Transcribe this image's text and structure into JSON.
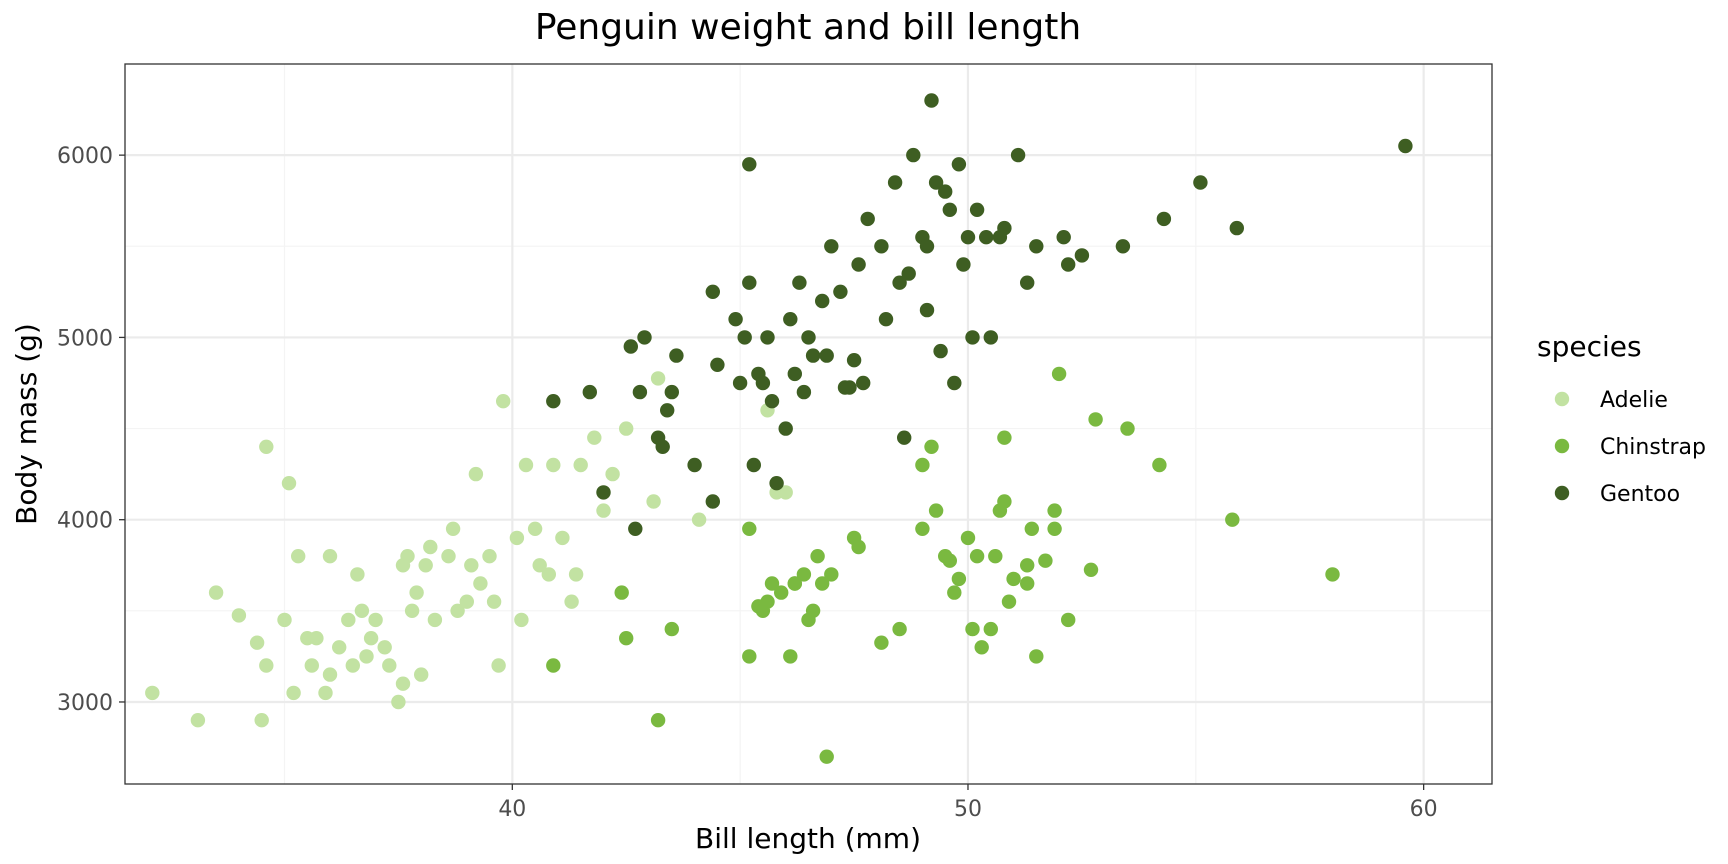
{
  "chart_data": {
    "type": "scatter",
    "title": "Penguin weight and bill length",
    "xlabel": "Bill length (mm)",
    "ylabel": "Body mass (g)",
    "xlim": [
      31.5,
      61.5
    ],
    "ylim": [
      2550,
      6500
    ],
    "x_ticks": [
      40,
      50,
      60
    ],
    "y_ticks": [
      3000,
      4000,
      5000,
      6000
    ],
    "grid": true,
    "legend": {
      "title": "species",
      "placement": "right"
    },
    "series": [
      {
        "name": "Adelie",
        "color": "#c2e2a2",
        "points": [
          [
            32.1,
            3050
          ],
          [
            33.1,
            2900
          ],
          [
            33.5,
            3600
          ],
          [
            34.0,
            3475
          ],
          [
            34.4,
            3325
          ],
          [
            34.5,
            2900
          ],
          [
            34.6,
            3200
          ],
          [
            34.6,
            4400
          ],
          [
            35.0,
            3450
          ],
          [
            35.1,
            4200
          ],
          [
            35.2,
            3050
          ],
          [
            35.3,
            3800
          ],
          [
            35.5,
            3350
          ],
          [
            35.6,
            3200
          ],
          [
            35.7,
            3350
          ],
          [
            35.9,
            3050
          ],
          [
            36.0,
            3800
          ],
          [
            36.0,
            3150
          ],
          [
            36.2,
            3300
          ],
          [
            36.4,
            3450
          ],
          [
            36.5,
            3200
          ],
          [
            36.6,
            3700
          ],
          [
            36.7,
            3500
          ],
          [
            36.8,
            3250
          ],
          [
            36.9,
            3350
          ],
          [
            37.0,
            3450
          ],
          [
            37.2,
            3300
          ],
          [
            37.3,
            3200
          ],
          [
            37.5,
            3000
          ],
          [
            37.6,
            3100
          ],
          [
            37.7,
            3800
          ],
          [
            37.8,
            3500
          ],
          [
            37.9,
            3600
          ],
          [
            38.0,
            3150
          ],
          [
            38.1,
            3750
          ],
          [
            38.2,
            3850
          ],
          [
            38.3,
            3450
          ],
          [
            38.6,
            3800
          ],
          [
            38.7,
            3950
          ],
          [
            38.8,
            3500
          ],
          [
            39.0,
            3550
          ],
          [
            39.1,
            3750
          ],
          [
            39.2,
            4250
          ],
          [
            39.3,
            3650
          ],
          [
            39.5,
            3800
          ],
          [
            39.6,
            3550
          ],
          [
            39.7,
            3200
          ],
          [
            39.8,
            4650
          ],
          [
            40.2,
            3450
          ],
          [
            40.3,
            4300
          ],
          [
            40.5,
            3950
          ],
          [
            40.6,
            3750
          ],
          [
            40.8,
            3700
          ],
          [
            41.1,
            3900
          ],
          [
            41.3,
            3550
          ],
          [
            41.5,
            4300
          ],
          [
            41.8,
            4450
          ],
          [
            42.0,
            4050
          ],
          [
            42.2,
            4250
          ],
          [
            42.5,
            4500
          ],
          [
            43.1,
            4100
          ],
          [
            43.2,
            4775
          ],
          [
            44.1,
            4000
          ],
          [
            45.6,
            4600
          ],
          [
            45.8,
            4150
          ],
          [
            46.0,
            4150
          ],
          [
            40.1,
            3900
          ],
          [
            40.9,
            4300
          ],
          [
            41.4,
            3700
          ],
          [
            37.6,
            3750
          ]
        ]
      },
      {
        "name": "Chinstrap",
        "color": "#7ab940",
        "points": [
          [
            40.9,
            3200
          ],
          [
            42.4,
            3600
          ],
          [
            42.5,
            3350
          ],
          [
            43.2,
            2900
          ],
          [
            43.5,
            3400
          ],
          [
            45.2,
            3250
          ],
          [
            45.2,
            3950
          ],
          [
            45.4,
            3525
          ],
          [
            45.5,
            3500
          ],
          [
            45.6,
            3550
          ],
          [
            45.7,
            3650
          ],
          [
            45.9,
            3600
          ],
          [
            46.1,
            3250
          ],
          [
            46.2,
            3650
          ],
          [
            46.4,
            3700
          ],
          [
            46.5,
            3450
          ],
          [
            46.6,
            3500
          ],
          [
            46.7,
            3800
          ],
          [
            46.8,
            3650
          ],
          [
            46.9,
            2700
          ],
          [
            47.0,
            3700
          ],
          [
            47.5,
            3900
          ],
          [
            47.6,
            3850
          ],
          [
            48.1,
            3325
          ],
          [
            48.5,
            3400
          ],
          [
            49.0,
            3950
          ],
          [
            49.2,
            4400
          ],
          [
            49.3,
            4050
          ],
          [
            49.5,
            3800
          ],
          [
            49.6,
            3775
          ],
          [
            49.7,
            3600
          ],
          [
            49.8,
            3675
          ],
          [
            50.0,
            3900
          ],
          [
            50.1,
            3400
          ],
          [
            50.2,
            3800
          ],
          [
            50.3,
            3300
          ],
          [
            50.5,
            3400
          ],
          [
            50.6,
            3800
          ],
          [
            50.7,
            4050
          ],
          [
            50.8,
            4100
          ],
          [
            50.9,
            3550
          ],
          [
            51.0,
            3675
          ],
          [
            51.3,
            3650
          ],
          [
            51.4,
            3950
          ],
          [
            51.5,
            3250
          ],
          [
            51.7,
            3775
          ],
          [
            51.9,
            4050
          ],
          [
            52.0,
            4800
          ],
          [
            52.2,
            3450
          ],
          [
            52.7,
            3725
          ],
          [
            52.8,
            4550
          ],
          [
            53.5,
            4500
          ],
          [
            54.2,
            4300
          ],
          [
            55.8,
            4000
          ],
          [
            58.0,
            3700
          ],
          [
            50.8,
            4450
          ],
          [
            49.0,
            4300
          ],
          [
            51.3,
            3750
          ],
          [
            46.2,
            3650
          ],
          [
            51.9,
            3950
          ]
        ]
      },
      {
        "name": "Gentoo",
        "color": "#3e5e22",
        "points": [
          [
            40.9,
            4650
          ],
          [
            41.7,
            4700
          ],
          [
            42.0,
            4150
          ],
          [
            42.6,
            4950
          ],
          [
            42.7,
            3950
          ],
          [
            42.8,
            4700
          ],
          [
            42.9,
            5000
          ],
          [
            43.2,
            4450
          ],
          [
            43.3,
            4400
          ],
          [
            43.4,
            4600
          ],
          [
            43.5,
            4700
          ],
          [
            43.6,
            4900
          ],
          [
            44.0,
            4300
          ],
          [
            44.4,
            5250
          ],
          [
            44.5,
            4850
          ],
          [
            44.9,
            5100
          ],
          [
            45.0,
            4750
          ],
          [
            45.1,
            5000
          ],
          [
            45.2,
            5300
          ],
          [
            45.3,
            4300
          ],
          [
            45.4,
            4800
          ],
          [
            45.5,
            4750
          ],
          [
            45.6,
            5000
          ],
          [
            45.7,
            4650
          ],
          [
            45.8,
            4200
          ],
          [
            46.1,
            5100
          ],
          [
            46.2,
            4800
          ],
          [
            46.3,
            5300
          ],
          [
            46.4,
            4700
          ],
          [
            46.5,
            5000
          ],
          [
            46.6,
            4900
          ],
          [
            46.8,
            5200
          ],
          [
            47.0,
            5500
          ],
          [
            47.2,
            5250
          ],
          [
            47.3,
            4725
          ],
          [
            47.4,
            4725
          ],
          [
            47.5,
            4875
          ],
          [
            47.6,
            5400
          ],
          [
            47.8,
            5650
          ],
          [
            48.1,
            5500
          ],
          [
            48.2,
            5100
          ],
          [
            48.4,
            5850
          ],
          [
            48.5,
            5300
          ],
          [
            48.7,
            5350
          ],
          [
            48.8,
            6000
          ],
          [
            49.0,
            5550
          ],
          [
            49.1,
            5500
          ],
          [
            49.2,
            6300
          ],
          [
            49.3,
            5850
          ],
          [
            49.4,
            4925
          ],
          [
            49.5,
            5800
          ],
          [
            49.6,
            5700
          ],
          [
            49.8,
            5950
          ],
          [
            49.9,
            5400
          ],
          [
            50.0,
            5550
          ],
          [
            50.1,
            5000
          ],
          [
            50.2,
            5700
          ],
          [
            50.4,
            5550
          ],
          [
            50.5,
            5000
          ],
          [
            50.7,
            5550
          ],
          [
            50.8,
            5600
          ],
          [
            51.1,
            6000
          ],
          [
            51.3,
            5300
          ],
          [
            51.5,
            5500
          ],
          [
            52.1,
            5550
          ],
          [
            52.2,
            5400
          ],
          [
            52.5,
            5450
          ],
          [
            53.4,
            5500
          ],
          [
            54.3,
            5650
          ],
          [
            55.1,
            5850
          ],
          [
            55.9,
            5600
          ],
          [
            59.6,
            6050
          ],
          [
            45.2,
            5950
          ],
          [
            44.4,
            4100
          ],
          [
            46.0,
            4500
          ],
          [
            46.9,
            4900
          ],
          [
            47.7,
            4750
          ],
          [
            48.6,
            4450
          ],
          [
            49.1,
            5150
          ],
          [
            49.7,
            4750
          ]
        ]
      }
    ]
  }
}
